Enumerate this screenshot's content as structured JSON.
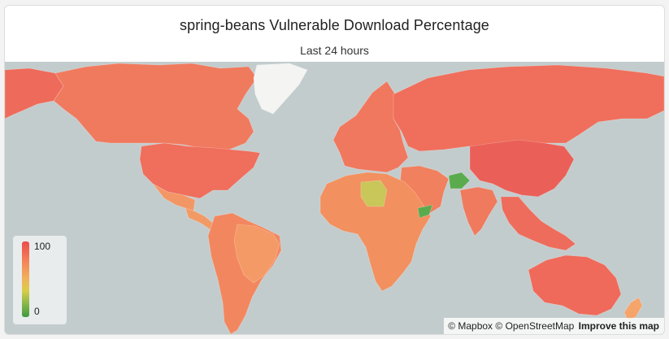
{
  "header": {
    "title": "spring-beans Vulnerable Download Percentage",
    "subtitle": "Last 24 hours"
  },
  "legend": {
    "max_label": "100",
    "min_label": "0",
    "color_high": "#ec4c4c",
    "color_mid": "#f0b25c",
    "color_low": "#3e9a3e"
  },
  "attribution": {
    "mapbox": "© Mapbox",
    "osm": "© OpenStreetMap",
    "improve": "Improve this map"
  },
  "map": {
    "ocean_color": "#c3cccd",
    "no_data_color": "#f4f4f2",
    "regions": [
      {
        "name": "United States",
        "color": "#ef6e5c"
      },
      {
        "name": "Canada",
        "color": "#f07a5e"
      },
      {
        "name": "Alaska",
        "color": "#ee6a5a"
      },
      {
        "name": "Greenland",
        "color": "#f4f4f2"
      },
      {
        "name": "Mexico",
        "color": "#f39665"
      },
      {
        "name": "Central America",
        "color": "#f29a66"
      },
      {
        "name": "Brazil",
        "color": "#f49a66"
      },
      {
        "name": "South America",
        "color": "#f2875f"
      },
      {
        "name": "Russia",
        "color": "#ef6f5c"
      },
      {
        "name": "Europe",
        "color": "#f0785e"
      },
      {
        "name": "China",
        "color": "#ea6058"
      },
      {
        "name": "India",
        "color": "#ef7a5e"
      },
      {
        "name": "Afghanistan",
        "color": "#5aab4e"
      },
      {
        "name": "Libya",
        "color": "#c9c65a"
      },
      {
        "name": "Somalia",
        "color": "#5aab4e"
      },
      {
        "name": "Australia",
        "color": "#ef6a5a"
      },
      {
        "name": "Africa",
        "color": "#f2905f"
      },
      {
        "name": "Middle East",
        "color": "#f0805e"
      },
      {
        "name": "Southeast Asia",
        "color": "#ee6c5b"
      },
      {
        "name": "New Zealand",
        "color": "#f5a46a"
      }
    ]
  }
}
